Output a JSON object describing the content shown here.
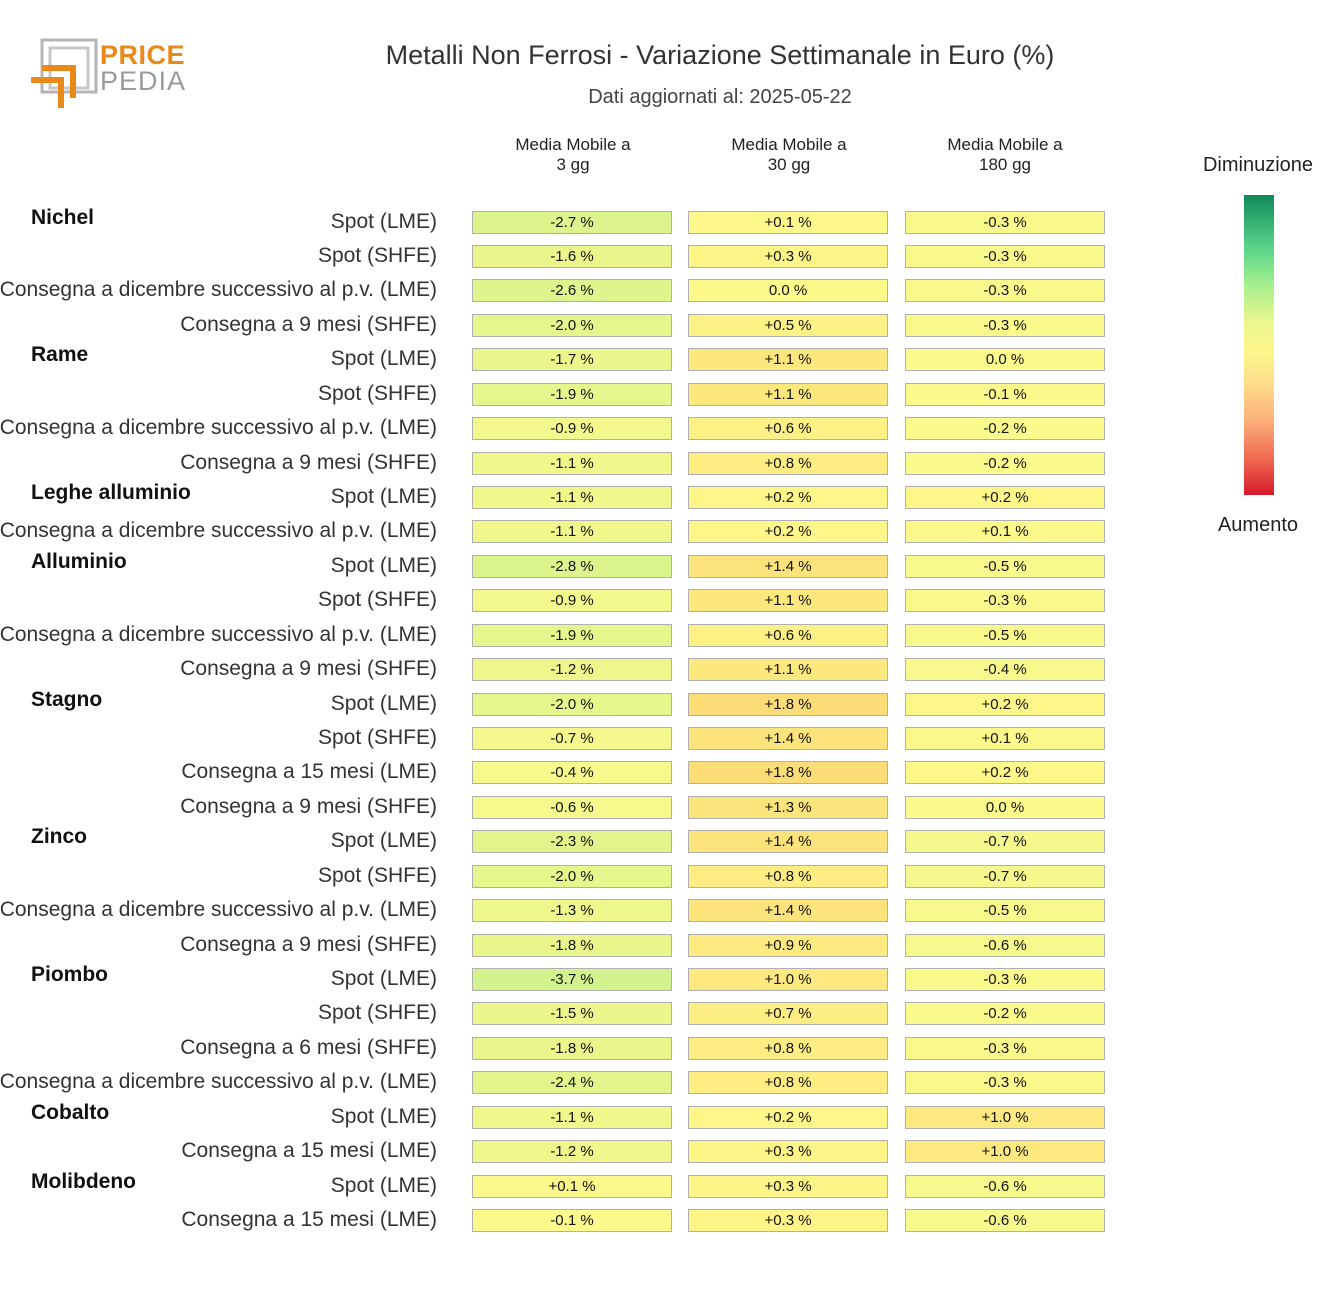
{
  "logo": {
    "line1": "PRICE",
    "line2": "PEDIA",
    "accent": "#e8891a",
    "gray": "#9a9a9a"
  },
  "title": "Metalli Non Ferrosi - Variazione Settimanale in Euro (%)",
  "subtitle": "Dati aggiornati al: 2025-05-22",
  "legend": {
    "top": "Diminuzione",
    "bottom": "Aumento"
  },
  "chart_data": {
    "type": "table",
    "columns": [
      "Media Mobile a\n3 gg",
      "Media Mobile a\n30 gg",
      "Media Mobile a\n180 gg"
    ],
    "groups": [
      {
        "name": "Nichel",
        "rows": [
          {
            "label": "Spot (LME)",
            "text": [
              "-2.7 %",
              "+0.1 %",
              "-0.3 %"
            ],
            "values": [
              -2.7,
              0.1,
              -0.3
            ]
          },
          {
            "label": "Spot (SHFE)",
            "text": [
              "-1.6 %",
              "+0.3 %",
              "-0.3 %"
            ],
            "values": [
              -1.6,
              0.3,
              -0.3
            ]
          },
          {
            "label": "Consegna a dicembre successivo al p.v. (LME)",
            "text": [
              "-2.6 %",
              "0.0 %",
              "-0.3 %"
            ],
            "values": [
              -2.6,
              0.0,
              -0.3
            ]
          },
          {
            "label": "Consegna a 9 mesi (SHFE)",
            "text": [
              "-2.0 %",
              "+0.5 %",
              "-0.3 %"
            ],
            "values": [
              -2.0,
              0.5,
              -0.3
            ]
          }
        ]
      },
      {
        "name": "Rame",
        "rows": [
          {
            "label": "Spot (LME)",
            "text": [
              "-1.7 %",
              "+1.1 %",
              "0.0 %"
            ],
            "values": [
              -1.7,
              1.1,
              0.0
            ]
          },
          {
            "label": "Spot (SHFE)",
            "text": [
              "-1.9 %",
              "+1.1 %",
              "-0.1 %"
            ],
            "values": [
              -1.9,
              1.1,
              -0.1
            ]
          },
          {
            "label": "Consegna a dicembre successivo al p.v. (LME)",
            "text": [
              "-0.9 %",
              "+0.6 %",
              "-0.2 %"
            ],
            "values": [
              -0.9,
              0.6,
              -0.2
            ]
          },
          {
            "label": "Consegna a 9 mesi (SHFE)",
            "text": [
              "-1.1 %",
              "+0.8 %",
              "-0.2 %"
            ],
            "values": [
              -1.1,
              0.8,
              -0.2
            ]
          }
        ]
      },
      {
        "name": "Leghe alluminio",
        "rows": [
          {
            "label": "Spot (LME)",
            "text": [
              "-1.1 %",
              "+0.2 %",
              "+0.2 %"
            ],
            "values": [
              -1.1,
              0.2,
              0.2
            ]
          },
          {
            "label": "Consegna a dicembre successivo al p.v. (LME)",
            "text": [
              "-1.1 %",
              "+0.2 %",
              "+0.1 %"
            ],
            "values": [
              -1.1,
              0.2,
              0.1
            ]
          }
        ]
      },
      {
        "name": "Alluminio",
        "rows": [
          {
            "label": "Spot (LME)",
            "text": [
              "-2.8 %",
              "+1.4 %",
              "-0.5 %"
            ],
            "values": [
              -2.8,
              1.4,
              -0.5
            ]
          },
          {
            "label": "Spot (SHFE)",
            "text": [
              "-0.9 %",
              "+1.1 %",
              "-0.3 %"
            ],
            "values": [
              -0.9,
              1.1,
              -0.3
            ]
          },
          {
            "label": "Consegna a dicembre successivo al p.v. (LME)",
            "text": [
              "-1.9 %",
              "+0.6 %",
              "-0.5 %"
            ],
            "values": [
              -1.9,
              0.6,
              -0.5
            ]
          },
          {
            "label": "Consegna a 9 mesi (SHFE)",
            "text": [
              "-1.2 %",
              "+1.1 %",
              "-0.4 %"
            ],
            "values": [
              -1.2,
              1.1,
              -0.4
            ]
          }
        ]
      },
      {
        "name": "Stagno",
        "rows": [
          {
            "label": "Spot (LME)",
            "text": [
              "-2.0 %",
              "+1.8 %",
              "+0.2 %"
            ],
            "values": [
              -2.0,
              1.8,
              0.2
            ]
          },
          {
            "label": "Spot (SHFE)",
            "text": [
              "-0.7 %",
              "+1.4 %",
              "+0.1 %"
            ],
            "values": [
              -0.7,
              1.4,
              0.1
            ]
          },
          {
            "label": "Consegna a 15 mesi (LME)",
            "text": [
              "-0.4 %",
              "+1.8 %",
              "+0.2 %"
            ],
            "values": [
              -0.4,
              1.8,
              0.2
            ]
          },
          {
            "label": "Consegna a 9 mesi (SHFE)",
            "text": [
              "-0.6 %",
              "+1.3 %",
              "0.0 %"
            ],
            "values": [
              -0.6,
              1.3,
              0.0
            ]
          }
        ]
      },
      {
        "name": "Zinco",
        "rows": [
          {
            "label": "Spot (LME)",
            "text": [
              "-2.3 %",
              "+1.4 %",
              "-0.7 %"
            ],
            "values": [
              -2.3,
              1.4,
              -0.7
            ]
          },
          {
            "label": "Spot (SHFE)",
            "text": [
              "-2.0 %",
              "+0.8 %",
              "-0.7 %"
            ],
            "values": [
              -2.0,
              0.8,
              -0.7
            ]
          },
          {
            "label": "Consegna a dicembre successivo al p.v. (LME)",
            "text": [
              "-1.3 %",
              "+1.4 %",
              "-0.5 %"
            ],
            "values": [
              -1.3,
              1.4,
              -0.5
            ]
          },
          {
            "label": "Consegna a 9 mesi (SHFE)",
            "text": [
              "-1.8 %",
              "+0.9 %",
              "-0.6 %"
            ],
            "values": [
              -1.8,
              0.9,
              -0.6
            ]
          }
        ]
      },
      {
        "name": "Piombo",
        "rows": [
          {
            "label": "Spot (LME)",
            "text": [
              "-3.7 %",
              "+1.0 %",
              "-0.3 %"
            ],
            "values": [
              -3.7,
              1.0,
              -0.3
            ]
          },
          {
            "label": "Spot (SHFE)",
            "text": [
              "-1.5 %",
              "+0.7 %",
              "-0.2 %"
            ],
            "values": [
              -1.5,
              0.7,
              -0.2
            ]
          },
          {
            "label": "Consegna a 6 mesi (SHFE)",
            "text": [
              "-1.8 %",
              "+0.8 %",
              "-0.3 %"
            ],
            "values": [
              -1.8,
              0.8,
              -0.3
            ]
          },
          {
            "label": "Consegna a dicembre successivo al p.v. (LME)",
            "text": [
              "-2.4 %",
              "+0.8 %",
              "-0.3 %"
            ],
            "values": [
              -2.4,
              0.8,
              -0.3
            ]
          }
        ]
      },
      {
        "name": "Cobalto",
        "rows": [
          {
            "label": "Spot (LME)",
            "text": [
              "-1.1 %",
              "+0.2 %",
              "+1.0 %"
            ],
            "values": [
              -1.1,
              0.2,
              1.0
            ]
          },
          {
            "label": "Consegna a 15 mesi (LME)",
            "text": [
              "-1.2 %",
              "+0.3 %",
              "+1.0 %"
            ],
            "values": [
              -1.2,
              0.3,
              1.0
            ]
          }
        ]
      },
      {
        "name": "Molibdeno",
        "rows": [
          {
            "label": "Spot (LME)",
            "text": [
              "+0.1 %",
              "+0.3 %",
              "-0.6 %"
            ],
            "values": [
              0.1,
              0.3,
              -0.6
            ]
          },
          {
            "label": "Consegna a 15 mesi (LME)",
            "text": [
              "-0.1 %",
              "+0.3 %",
              "-0.6 %"
            ],
            "values": [
              -0.1,
              0.3,
              -0.6
            ]
          }
        ]
      }
    ],
    "color_scale": {
      "negative": "#0f8a5a",
      "neutral": "#fdf78c",
      "positive": "#d7192b"
    }
  }
}
